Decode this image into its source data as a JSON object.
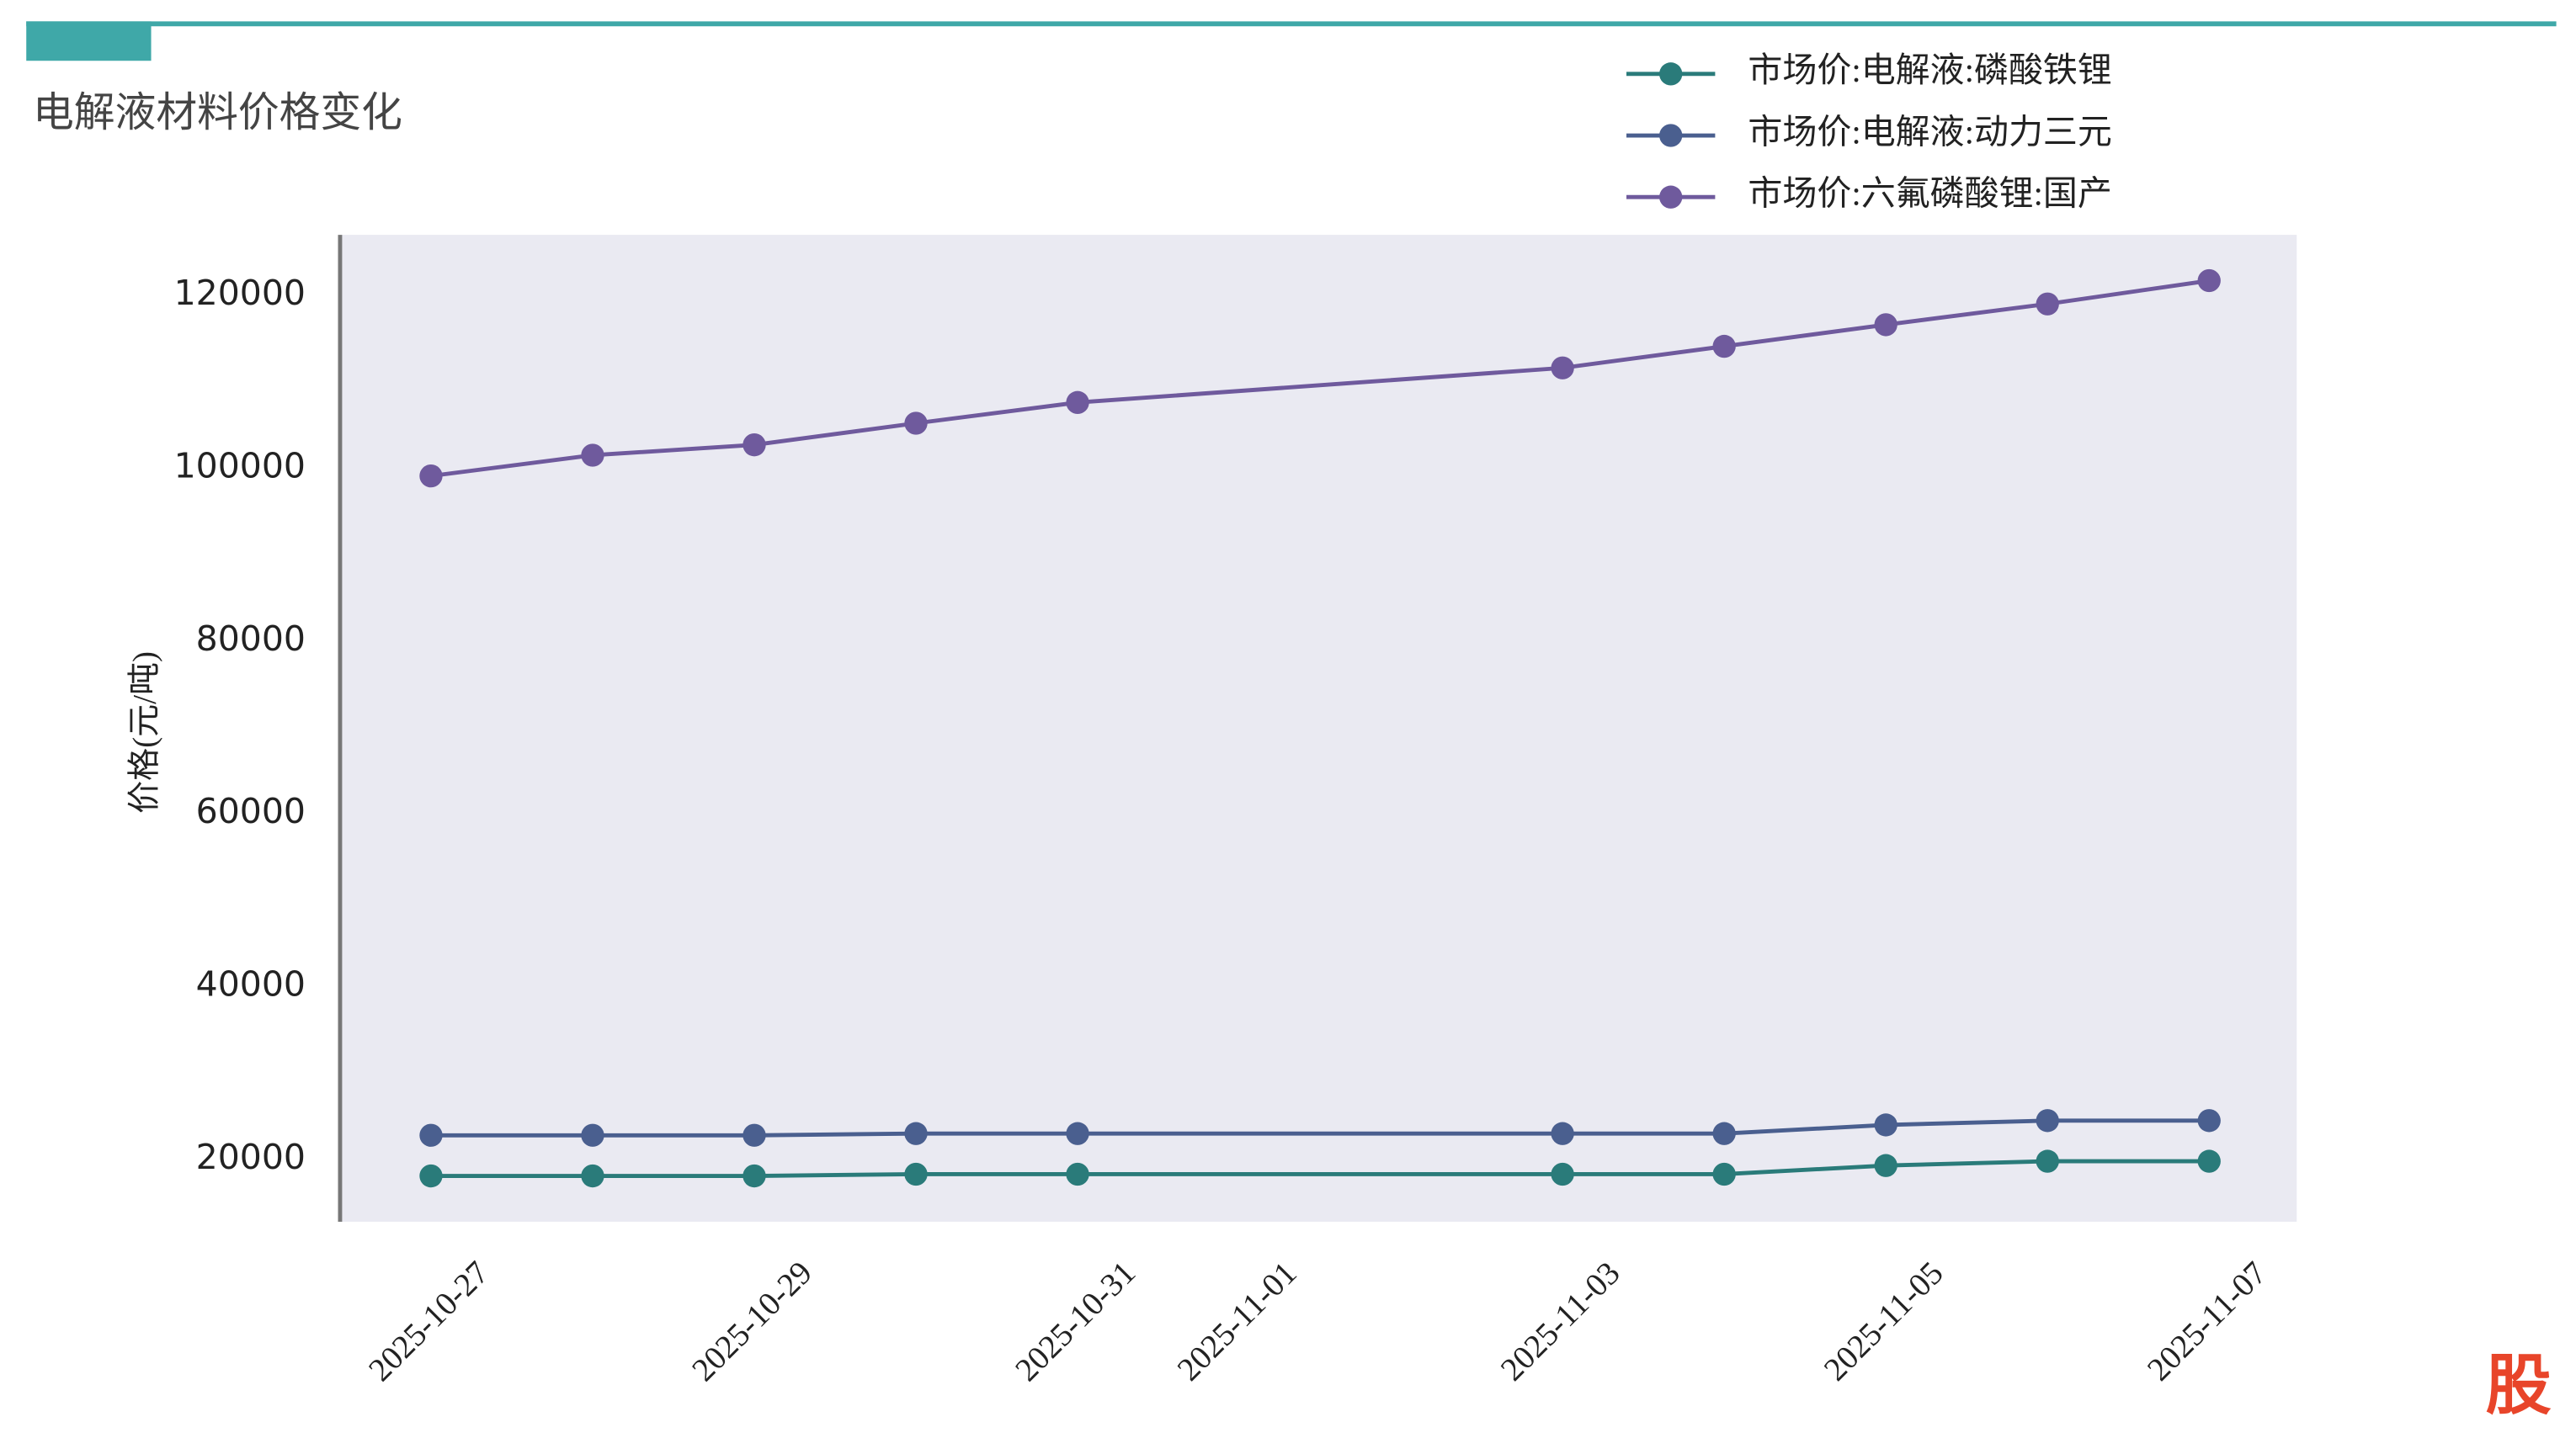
{
  "chart_data": {
    "type": "line",
    "title": "电解液材料价格变化",
    "y_label": "价格(元/吨)",
    "logo": "股",
    "x": [
      "2025-10-27",
      "2025-10-28",
      "2025-10-29",
      "2025-10-30",
      "2025-10-31",
      "2025-11-03",
      "2025-11-04",
      "2025-11-05",
      "2025-11-06",
      "2025-11-07"
    ],
    "xlim": [
      "2025-10-26T10:30",
      "2025-11-07T13:00"
    ],
    "xticks": [
      "2025-10-27",
      "2025-10-29",
      "2025-10-31",
      "2025-11-01",
      "2025-11-03",
      "2025-11-05",
      "2025-11-07"
    ],
    "ylim": [
      12800,
      127000
    ],
    "yticks": [
      20000,
      40000,
      60000,
      80000,
      100000,
      120000
    ],
    "legend": "upper right",
    "series": [
      {
        "name": "市场价:电解液:磷酸铁锂",
        "color": "#2a7b7a",
        "values": [
          18100,
          18100,
          18100,
          18300,
          18300,
          18300,
          18300,
          19300,
          19800,
          19800
        ]
      },
      {
        "name": "市场价:电解液:动力三元",
        "color": "#4a5f8f",
        "values": [
          22800,
          22800,
          22800,
          23000,
          23000,
          23000,
          23000,
          24000,
          24500,
          24500
        ]
      },
      {
        "name": "市场价:六氟磷酸锂:国产",
        "color": "#6f5a9d",
        "values": [
          99100,
          101500,
          102700,
          105200,
          107600,
          111600,
          114100,
          116600,
          119000,
          121700
        ]
      }
    ]
  }
}
